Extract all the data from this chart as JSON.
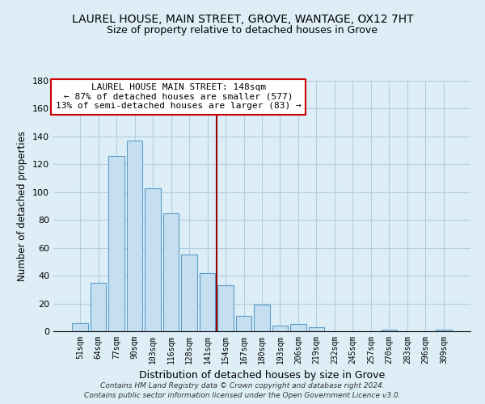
{
  "title": "LAUREL HOUSE, MAIN STREET, GROVE, WANTAGE, OX12 7HT",
  "subtitle": "Size of property relative to detached houses in Grove",
  "xlabel": "Distribution of detached houses by size in Grove",
  "ylabel": "Number of detached properties",
  "bar_labels": [
    "51sqm",
    "64sqm",
    "77sqm",
    "90sqm",
    "103sqm",
    "116sqm",
    "128sqm",
    "141sqm",
    "154sqm",
    "167sqm",
    "180sqm",
    "193sqm",
    "206sqm",
    "219sqm",
    "232sqm",
    "245sqm",
    "257sqm",
    "270sqm",
    "283sqm",
    "296sqm",
    "309sqm"
  ],
  "bar_values": [
    6,
    35,
    126,
    137,
    103,
    85,
    55,
    42,
    33,
    11,
    19,
    4,
    5,
    3,
    0,
    0,
    0,
    1,
    0,
    0,
    1
  ],
  "bar_color": "#c6dff0",
  "bar_edge_color": "#5b9ec9",
  "vline_x": 7.5,
  "vline_color": "#990000",
  "annotation_text": "LAUREL HOUSE MAIN STREET: 148sqm\n← 87% of detached houses are smaller (577)\n13% of semi-detached houses are larger (83) →",
  "annotation_box_color": "#ffffff",
  "annotation_box_edge": "#cc0000",
  "ylim": [
    0,
    180
  ],
  "yticks": [
    0,
    20,
    40,
    60,
    80,
    100,
    120,
    140,
    160,
    180
  ],
  "footer1": "Contains HM Land Registry data © Crown copyright and database right 2024.",
  "footer2": "Contains public sector information licensed under the Open Government Licence v3.0.",
  "bg_color": "#ddeef7",
  "plot_bg_color": "#ddeef7",
  "grid_color": "#b0cfe0"
}
